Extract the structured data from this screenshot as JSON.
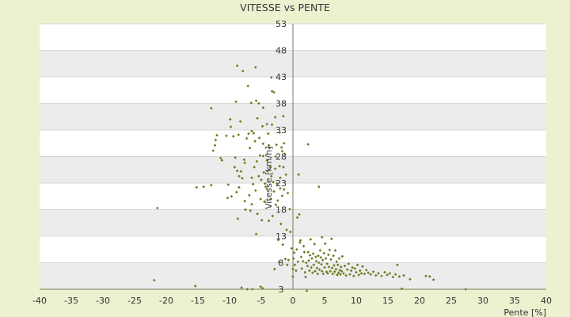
{
  "chart_data": {
    "type": "scatter",
    "title": "VITESSE vs PENTE",
    "xlabel": "Pente [%]",
    "ylabel": "Vitesse [km/h]",
    "xlim": [
      -40,
      40
    ],
    "ylim": [
      3,
      53
    ],
    "x_ticks": [
      "-40",
      "-35",
      "-30",
      "-25",
      "-20",
      "-15",
      "-10",
      "-5",
      "0",
      "5",
      "10",
      "15",
      "20",
      "25",
      "30",
      "35",
      "40"
    ],
    "y_ticks": [
      "3",
      "8",
      "13",
      "18",
      "23",
      "28",
      "33",
      "38",
      "43",
      "48",
      "53"
    ],
    "grid": true,
    "colors": {
      "page_background": "#ecf2d0",
      "band_light": "#ffffff",
      "band_dark": "#ececec",
      "gridline": "#d8d8d8",
      "axis": "#7a7a5a",
      "marker": "#6b7a1e"
    },
    "points": [
      [
        -21.9,
        4.7
      ],
      [
        -21.4,
        18.3
      ],
      [
        -15.4,
        3.6
      ],
      [
        -15.2,
        22.2
      ],
      [
        -14.1,
        22.3
      ],
      [
        -12.9,
        37.1
      ],
      [
        -12.9,
        22.6
      ],
      [
        -12.6,
        29.1
      ],
      [
        -12.3,
        30.1
      ],
      [
        -12.2,
        31.1
      ],
      [
        -12.0,
        32.0
      ],
      [
        -11.4,
        27.7
      ],
      [
        -11.2,
        27.3
      ],
      [
        -10.5,
        31.9
      ],
      [
        -10.3,
        20.2
      ],
      [
        -10.2,
        22.7
      ],
      [
        -9.9,
        35.0
      ],
      [
        -9.8,
        33.6
      ],
      [
        -9.7,
        20.5
      ],
      [
        -9.4,
        31.8
      ],
      [
        -9.2,
        26.0
      ],
      [
        -9.1,
        27.8
      ],
      [
        -9.0,
        38.3
      ],
      [
        -8.9,
        21.3
      ],
      [
        -8.8,
        45.1
      ],
      [
        -8.8,
        25.3
      ],
      [
        -8.7,
        16.3
      ],
      [
        -8.6,
        32.1
      ],
      [
        -8.5,
        24.3
      ],
      [
        -8.5,
        22.2
      ],
      [
        -8.3,
        34.6
      ],
      [
        -8.2,
        25.2
      ],
      [
        -8.1,
        3.3
      ],
      [
        -8.0,
        23.9
      ],
      [
        -7.9,
        44.1
      ],
      [
        -7.7,
        27.4
      ],
      [
        -7.6,
        26.8
      ],
      [
        -7.6,
        19.6
      ],
      [
        -7.5,
        18.0
      ],
      [
        -7.3,
        31.4
      ],
      [
        -7.2,
        3.0
      ],
      [
        -7.1,
        41.3
      ],
      [
        -7.0,
        32.3
      ],
      [
        -6.9,
        20.7
      ],
      [
        -6.8,
        29.6
      ],
      [
        -6.7,
        17.8
      ],
      [
        -6.6,
        38.1
      ],
      [
        -6.5,
        32.8
      ],
      [
        -6.5,
        24.0
      ],
      [
        -6.5,
        19.0
      ],
      [
        -6.4,
        3.0
      ],
      [
        -6.3,
        22.8
      ],
      [
        -6.2,
        32.4
      ],
      [
        -6.1,
        26.0
      ],
      [
        -6.0,
        30.9
      ],
      [
        -5.9,
        44.8
      ],
      [
        -5.9,
        21.6
      ],
      [
        -5.8,
        38.5
      ],
      [
        -5.8,
        13.4
      ],
      [
        -5.7,
        27.1
      ],
      [
        -5.6,
        35.2
      ],
      [
        -5.6,
        17.2
      ],
      [
        -5.4,
        38.0
      ],
      [
        -5.4,
        24.3
      ],
      [
        -5.3,
        31.5
      ],
      [
        -5.2,
        28.2
      ],
      [
        -5.1,
        3.5
      ],
      [
        -5.1,
        20.0
      ],
      [
        -5.0,
        23.6
      ],
      [
        -4.9,
        16.0
      ],
      [
        -4.8,
        3.2
      ],
      [
        -4.8,
        33.7
      ],
      [
        -4.7,
        37.2
      ],
      [
        -4.7,
        30.4
      ],
      [
        -4.7,
        28.1
      ],
      [
        -4.6,
        25.0
      ],
      [
        -4.5,
        19.5
      ],
      [
        -4.4,
        22.9
      ],
      [
        -4.3,
        22.3
      ],
      [
        -4.1,
        34.1
      ],
      [
        -4.1,
        27.3
      ],
      [
        -4.1,
        21.9
      ],
      [
        -4.0,
        25.2
      ],
      [
        -3.9,
        32.3
      ],
      [
        -3.8,
        30.1
      ],
      [
        -3.8,
        15.9
      ],
      [
        -3.7,
        29.6
      ],
      [
        -3.6,
        26.0
      ],
      [
        -3.5,
        20.0
      ],
      [
        -3.4,
        42.9
      ],
      [
        -3.4,
        24.3
      ],
      [
        -3.3,
        40.3
      ],
      [
        -3.3,
        34.0
      ],
      [
        -3.2,
        16.8
      ],
      [
        -3.1,
        23.2
      ],
      [
        -3.0,
        40.1
      ],
      [
        -3.0,
        21.4
      ],
      [
        -2.9,
        6.8
      ],
      [
        -2.8,
        35.4
      ],
      [
        -2.8,
        25.7
      ],
      [
        -2.7,
        28.0
      ],
      [
        -2.7,
        18.9
      ],
      [
        -2.6,
        30.2
      ],
      [
        -2.5,
        22.9
      ],
      [
        -2.4,
        19.7
      ],
      [
        -2.3,
        12.3
      ],
      [
        -2.2,
        8.1
      ],
      [
        -2.1,
        32.5
      ],
      [
        -2.1,
        26.2
      ],
      [
        -2.0,
        24.0
      ],
      [
        -2.0,
        22.0
      ],
      [
        -1.9,
        15.3
      ],
      [
        -1.8,
        29.7
      ],
      [
        -1.7,
        29.0
      ],
      [
        -1.7,
        20.6
      ],
      [
        -1.6,
        11.4
      ],
      [
        -1.5,
        35.6
      ],
      [
        -1.5,
        26.0
      ],
      [
        -1.4,
        30.5
      ],
      [
        -1.4,
        21.8
      ],
      [
        -1.3,
        28.5
      ],
      [
        -1.2,
        8.7
      ],
      [
        -1.1,
        24.6
      ],
      [
        -1.0,
        14.2
      ],
      [
        -0.9,
        7.6
      ],
      [
        -0.8,
        21.1
      ],
      [
        -0.7,
        8.5
      ],
      [
        -0.5,
        18.1
      ],
      [
        -0.4,
        13.8
      ],
      [
        -0.2,
        10.7
      ],
      [
        0.0,
        5.4
      ],
      [
        0.0,
        6.8
      ],
      [
        0.1,
        8.8
      ],
      [
        0.2,
        9.9
      ],
      [
        0.3,
        7.6
      ],
      [
        0.5,
        6.5
      ],
      [
        0.6,
        10.5
      ],
      [
        0.7,
        16.5
      ],
      [
        0.8,
        8.2
      ],
      [
        0.9,
        24.6
      ],
      [
        1.0,
        17.1
      ],
      [
        1.1,
        11.8
      ],
      [
        1.2,
        12.2
      ],
      [
        1.3,
        9.1
      ],
      [
        1.4,
        6.9
      ],
      [
        1.6,
        8.3
      ],
      [
        1.7,
        11.1
      ],
      [
        1.8,
        10.0
      ],
      [
        1.9,
        6.2
      ],
      [
        2.0,
        5.3
      ],
      [
        2.1,
        8.0
      ],
      [
        2.2,
        2.7
      ],
      [
        2.3,
        7.4
      ],
      [
        2.4,
        30.3
      ],
      [
        2.4,
        10.0
      ],
      [
        2.5,
        8.4
      ],
      [
        2.6,
        6.5
      ],
      [
        2.7,
        9.4
      ],
      [
        2.8,
        12.4
      ],
      [
        2.9,
        7.1
      ],
      [
        3.0,
        8.8
      ],
      [
        3.1,
        6.1
      ],
      [
        3.2,
        9.7
      ],
      [
        3.3,
        7.6
      ],
      [
        3.4,
        11.5
      ],
      [
        3.5,
        6.4
      ],
      [
        3.6,
        9.1
      ],
      [
        3.7,
        8.3
      ],
      [
        3.8,
        7.0
      ],
      [
        3.9,
        5.9
      ],
      [
        4.0,
        9.3
      ],
      [
        4.1,
        22.3
      ],
      [
        4.1,
        8.0
      ],
      [
        4.2,
        6.7
      ],
      [
        4.3,
        10.3
      ],
      [
        4.4,
        9.0
      ],
      [
        4.5,
        7.7
      ],
      [
        4.6,
        12.8
      ],
      [
        4.6,
        6.4
      ],
      [
        4.7,
        8.5
      ],
      [
        4.8,
        5.9
      ],
      [
        4.9,
        9.8
      ],
      [
        5.0,
        7.1
      ],
      [
        5.1,
        11.6
      ],
      [
        5.2,
        8.8
      ],
      [
        5.3,
        6.3
      ],
      [
        5.4,
        7.8
      ],
      [
        5.5,
        6.0
      ],
      [
        5.6,
        9.5
      ],
      [
        5.7,
        7.2
      ],
      [
        5.8,
        10.4
      ],
      [
        5.9,
        6.4
      ],
      [
        6.0,
        8.6
      ],
      [
        6.1,
        12.5
      ],
      [
        6.2,
        7.0
      ],
      [
        6.3,
        5.9
      ],
      [
        6.4,
        9.3
      ],
      [
        6.5,
        7.5
      ],
      [
        6.6,
        6.3
      ],
      [
        6.7,
        10.3
      ],
      [
        6.8,
        6.8
      ],
      [
        6.9,
        8.2
      ],
      [
        7.0,
        5.7
      ],
      [
        7.1,
        7.6
      ],
      [
        7.2,
        6.1
      ],
      [
        7.3,
        8.8
      ],
      [
        7.4,
        6.6
      ],
      [
        7.5,
        5.8
      ],
      [
        7.6,
        7.2
      ],
      [
        7.7,
        6.4
      ],
      [
        7.8,
        9.2
      ],
      [
        8.0,
        6.0
      ],
      [
        8.2,
        7.4
      ],
      [
        8.4,
        5.6
      ],
      [
        8.6,
        6.7
      ],
      [
        8.8,
        7.8
      ],
      [
        9.0,
        5.8
      ],
      [
        9.2,
        6.5
      ],
      [
        9.4,
        7.1
      ],
      [
        9.6,
        5.5
      ],
      [
        9.8,
        6.9
      ],
      [
        10.0,
        6.2
      ],
      [
        10.2,
        7.6
      ],
      [
        10.4,
        5.7
      ],
      [
        10.6,
        6.5
      ],
      [
        10.8,
        6.0
      ],
      [
        11.0,
        7.3
      ],
      [
        11.3,
        5.9
      ],
      [
        11.6,
        6.6
      ],
      [
        11.9,
        6.1
      ],
      [
        12.3,
        5.8
      ],
      [
        12.7,
        6.3
      ],
      [
        13.1,
        5.6
      ],
      [
        13.5,
        6.0
      ],
      [
        14.0,
        5.5
      ],
      [
        14.5,
        6.2
      ],
      [
        14.9,
        5.7
      ],
      [
        15.3,
        6.0
      ],
      [
        15.8,
        5.3
      ],
      [
        16.2,
        5.8
      ],
      [
        16.5,
        7.6
      ],
      [
        16.8,
        5.4
      ],
      [
        17.2,
        3.1
      ],
      [
        17.5,
        5.6
      ],
      [
        18.5,
        4.9
      ],
      [
        21.0,
        5.5
      ],
      [
        21.6,
        5.4
      ],
      [
        22.2,
        4.8
      ],
      [
        27.3,
        3.0
      ]
    ]
  }
}
